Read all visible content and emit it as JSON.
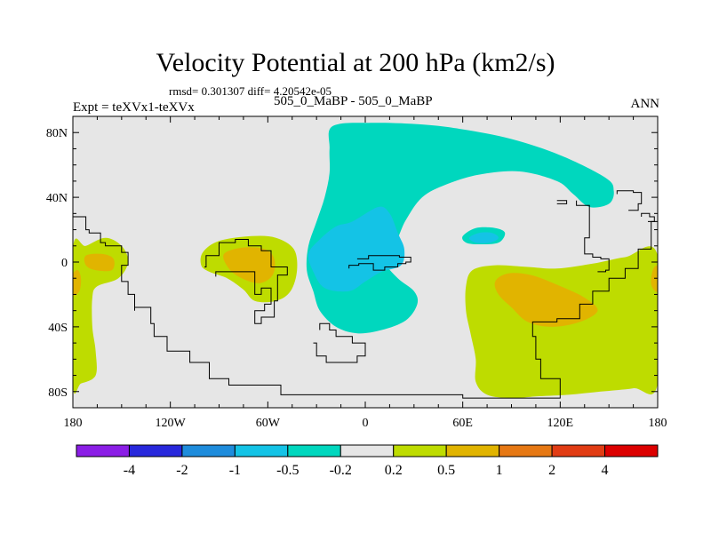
{
  "title": "Velocity Potential at 200 hPa (km2/s)",
  "stats": "rmsd= 0.301307 diff= 4.20542e-05",
  "left_label": "Expt = teXVx1-teXVx",
  "center_label": "505_0_MaBP - 505_0_MaBP",
  "right_label": "ANN",
  "chart_data": {
    "type": "contour-map",
    "x_ticks": [
      "180",
      "120W",
      "60W",
      "0",
      "60E",
      "120E",
      "180"
    ],
    "y_ticks": [
      "80N",
      "40N",
      "0",
      "40S",
      "80S"
    ],
    "x_range": [
      -180,
      180
    ],
    "y_range": [
      -90,
      90
    ],
    "contour_levels": [
      "-4",
      "-2",
      "-1",
      "-0.5",
      "-0.2",
      "0.2",
      "0.5",
      "1",
      "2",
      "4"
    ],
    "colorbar_colors": [
      "#8b1ee6",
      "#2828dc",
      "#1e8cdc",
      "#14c3e6",
      "#00d7be",
      "#e6e6e6",
      "#bedc00",
      "#e1b400",
      "#e67814",
      "#e13c14",
      "#dc0000"
    ],
    "background_color": "#e6e6e6",
    "regions": [
      {
        "level": "-0.5",
        "color": "#00d7be",
        "lonlat": [
          [
            -20,
            84
          ],
          [
            5,
            86
          ],
          [
            35,
            85
          ],
          [
            60,
            82
          ],
          [
            90,
            76
          ],
          [
            120,
            66
          ],
          [
            148,
            52
          ],
          [
            153,
            44
          ],
          [
            150,
            36
          ],
          [
            138,
            34
          ],
          [
            128,
            42
          ],
          [
            118,
            50
          ],
          [
            95,
            56
          ],
          [
            70,
            54
          ],
          [
            50,
            48
          ],
          [
            35,
            40
          ],
          [
            25,
            26
          ],
          [
            20,
            15
          ],
          [
            15,
            8
          ],
          [
            12,
            0
          ],
          [
            20,
            -10
          ],
          [
            30,
            -18
          ],
          [
            32,
            -26
          ],
          [
            25,
            -36
          ],
          [
            10,
            -42
          ],
          [
            -5,
            -44
          ],
          [
            -18,
            -40
          ],
          [
            -28,
            -30
          ],
          [
            -32,
            -18
          ],
          [
            -36,
            -5
          ],
          [
            -35,
            10
          ],
          [
            -30,
            25
          ],
          [
            -25,
            40
          ],
          [
            -22,
            55
          ],
          [
            -22,
            70
          ]
        ]
      },
      {
        "level": "-0.5",
        "color": "#00d7be",
        "lonlat": [
          [
            60,
            16
          ],
          [
            68,
            21
          ],
          [
            80,
            21
          ],
          [
            86,
            18
          ],
          [
            82,
            12
          ],
          [
            70,
            11
          ],
          [
            62,
            12
          ]
        ]
      },
      {
        "level": "-1",
        "color": "#14c3e6",
        "lonlat": [
          [
            -28,
            14
          ],
          [
            -18,
            22
          ],
          [
            -8,
            25
          ],
          [
            8,
            34
          ],
          [
            15,
            30
          ],
          [
            20,
            18
          ],
          [
            24,
            8
          ],
          [
            22,
            -2
          ],
          [
            10,
            -6
          ],
          [
            0,
            -12
          ],
          [
            -10,
            -18
          ],
          [
            -25,
            -16
          ],
          [
            -32,
            -6
          ],
          [
            -35,
            5
          ]
        ]
      },
      {
        "level": "-1",
        "color": "#14c3e6",
        "lonlat": [
          [
            64,
            15
          ],
          [
            70,
            18
          ],
          [
            78,
            18
          ],
          [
            82,
            15
          ],
          [
            77,
            12
          ],
          [
            68,
            12
          ]
        ]
      },
      {
        "level": "0.2",
        "color": "#bedc00",
        "lonlat": [
          [
            -180,
            8
          ],
          [
            -172,
            10
          ],
          [
            -160,
            15
          ],
          [
            -150,
            10
          ],
          [
            -146,
            0
          ],
          [
            -152,
            -10
          ],
          [
            -165,
            -15
          ],
          [
            -168,
            -22
          ],
          [
            -168,
            -40
          ],
          [
            -166,
            -55
          ],
          [
            -166,
            -70
          ],
          [
            -175,
            -75
          ],
          [
            -180,
            -75
          ]
        ]
      },
      {
        "level": "0.2",
        "color": "#bedc00",
        "lonlat": [
          [
            180,
            4
          ],
          [
            180,
            -75
          ],
          [
            165,
            -78
          ],
          [
            145,
            -80
          ],
          [
            125,
            -82
          ],
          [
            105,
            -83
          ],
          [
            90,
            -84
          ],
          [
            75,
            -82
          ],
          [
            68,
            -74
          ],
          [
            68,
            -60
          ],
          [
            65,
            -45
          ],
          [
            62,
            -30
          ],
          [
            62,
            -15
          ],
          [
            66,
            -5
          ],
          [
            80,
            -2
          ],
          [
            100,
            -3
          ],
          [
            118,
            -4
          ],
          [
            140,
            -1
          ],
          [
            160,
            3
          ]
        ]
      },
      {
        "level": "0.2",
        "color": "#bedc00",
        "lonlat": [
          [
            -100,
            6
          ],
          [
            -90,
            13
          ],
          [
            -70,
            16
          ],
          [
            -55,
            15
          ],
          [
            -44,
            8
          ],
          [
            -42,
            -5
          ],
          [
            -46,
            -18
          ],
          [
            -55,
            -24
          ],
          [
            -68,
            -24
          ],
          [
            -75,
            -17
          ],
          [
            -85,
            -10
          ],
          [
            -96,
            -6
          ],
          [
            -101,
            -2
          ]
        ]
      },
      {
        "level": "0.5",
        "color": "#e1b400",
        "lonlat": [
          [
            -172,
            4
          ],
          [
            -162,
            5
          ],
          [
            -155,
            2
          ],
          [
            -156,
            -5
          ],
          [
            -166,
            -5
          ],
          [
            -172,
            -2
          ]
        ]
      },
      {
        "level": "0.5",
        "color": "#e1b400",
        "lonlat": [
          [
            -180,
            -8
          ],
          [
            -177,
            -5
          ],
          [
            -175,
            -10
          ],
          [
            -176,
            -18
          ],
          [
            -180,
            -20
          ]
        ]
      },
      {
        "level": "0.5",
        "color": "#e1b400",
        "lonlat": [
          [
            -87,
            5
          ],
          [
            -75,
            9
          ],
          [
            -62,
            8
          ],
          [
            -56,
            2
          ],
          [
            -57,
            -8
          ],
          [
            -65,
            -13
          ],
          [
            -76,
            -10
          ],
          [
            -84,
            -4
          ]
        ]
      },
      {
        "level": "0.5",
        "color": "#e1b400",
        "lonlat": [
          [
            80,
            -12
          ],
          [
            88,
            -7
          ],
          [
            102,
            -8
          ],
          [
            118,
            -14
          ],
          [
            135,
            -22
          ],
          [
            143,
            -30
          ],
          [
            132,
            -37
          ],
          [
            115,
            -40
          ],
          [
            100,
            -37
          ],
          [
            90,
            -28
          ],
          [
            82,
            -20
          ]
        ]
      },
      {
        "level": "0.5",
        "color": "#e1b400",
        "lonlat": [
          [
            177,
            -5
          ],
          [
            180,
            -3
          ],
          [
            180,
            -18
          ],
          [
            176,
            -14
          ]
        ]
      }
    ],
    "coastlines": [
      [
        [
          -180,
          30
        ],
        [
          -172,
          28
        ],
        [
          -170,
          20
        ],
        [
          -163,
          18
        ],
        [
          -160,
          12
        ],
        [
          -150,
          10
        ],
        [
          -146,
          6
        ],
        [
          -150,
          -2
        ],
        [
          -146,
          -12
        ],
        [
          -142,
          -20
        ],
        [
          -142,
          -30
        ],
        [
          -132,
          -28
        ],
        [
          -130,
          -38
        ],
        [
          -122,
          -46
        ],
        [
          -108,
          -55
        ],
        [
          -96,
          -62
        ],
        [
          -84,
          -72
        ],
        [
          -72,
          -76
        ],
        [
          -52,
          -76
        ],
        [
          -36,
          -82
        ],
        [
          18,
          -82
        ],
        [
          60,
          -82
        ],
        [
          100,
          -84
        ],
        [
          120,
          -84
        ],
        [
          120,
          -72
        ],
        [
          108,
          -72
        ],
        [
          105,
          -60
        ],
        [
          103,
          -46
        ],
        [
          106,
          -37
        ],
        [
          118,
          -37
        ],
        [
          132,
          -35
        ],
        [
          140,
          -26
        ],
        [
          150,
          -18
        ],
        [
          160,
          -10
        ],
        [
          168,
          -4
        ],
        [
          176,
          8
        ],
        [
          180,
          25
        ]
      ],
      [
        [
          -92,
          -9
        ],
        [
          -86,
          -6
        ],
        [
          -68,
          -6
        ],
        [
          -64,
          -20
        ],
        [
          -58,
          -16
        ],
        [
          -62,
          -26
        ],
        [
          -68,
          -30
        ],
        [
          -64,
          -38
        ],
        [
          -56,
          -34
        ],
        [
          -54,
          -24
        ],
        [
          -48,
          -8
        ],
        [
          -58,
          -3
        ],
        [
          -64,
          7
        ],
        [
          -72,
          10
        ],
        [
          -80,
          14
        ],
        [
          -90,
          12
        ],
        [
          -98,
          4
        ],
        [
          -99,
          -3
        ]
      ],
      [
        [
          -10,
          -4
        ],
        [
          -4,
          -2
        ],
        [
          5,
          -1
        ],
        [
          12,
          -5
        ],
        [
          20,
          -3
        ],
        [
          25,
          -1
        ],
        [
          28,
          0
        ],
        [
          21,
          3
        ],
        [
          12,
          4
        ],
        [
          2,
          4
        ],
        [
          -5,
          2
        ]
      ],
      [
        [
          -28,
          -42
        ],
        [
          -22,
          -38
        ],
        [
          -18,
          -42
        ],
        [
          -8,
          -46
        ],
        [
          0,
          -50
        ],
        [
          -5,
          -58
        ],
        [
          -15,
          -62
        ],
        [
          -24,
          -62
        ],
        [
          -30,
          -58
        ],
        [
          -32,
          -50
        ]
      ],
      [
        [
          130,
          38
        ],
        [
          138,
          35
        ],
        [
          138,
          28
        ],
        [
          135,
          15
        ],
        [
          140,
          5
        ],
        [
          145,
          3
        ],
        [
          150,
          2
        ],
        [
          148,
          -5
        ],
        [
          143,
          -6
        ]
      ],
      [
        [
          155,
          42
        ],
        [
          165,
          44
        ],
        [
          170,
          43
        ],
        [
          168,
          36
        ],
        [
          162,
          32
        ]
      ],
      [
        [
          170,
          28
        ],
        [
          175,
          30
        ],
        [
          178,
          28
        ],
        [
          174,
          25
        ]
      ],
      [
        [
          118,
          36
        ],
        [
          124,
          36
        ],
        [
          124,
          38
        ],
        [
          118,
          38
        ]
      ]
    ]
  }
}
